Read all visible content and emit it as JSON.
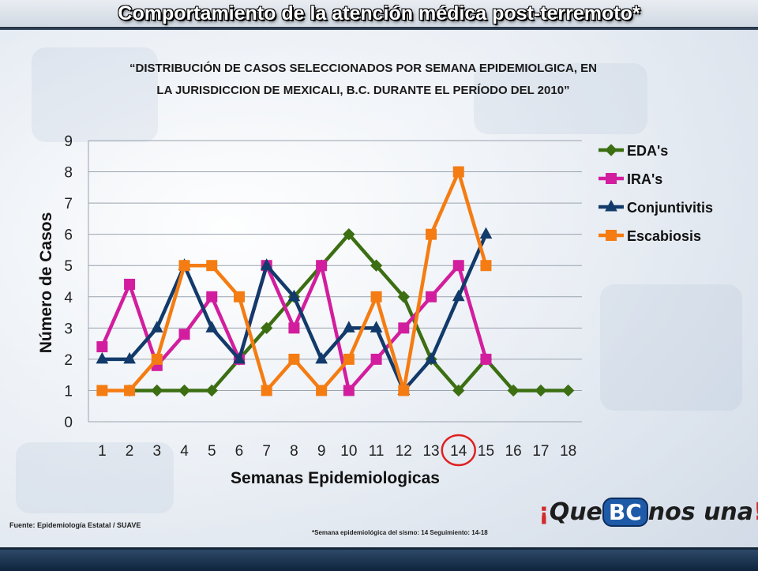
{
  "header": {
    "title": "Comportamiento de la atención médica post-terremoto*",
    "subtitle_line1": "“DISTRIBUCIÓN DE CASOS SELECCIONADOS POR SEMANA EPIDEMIOLGICA, EN",
    "subtitle_line2": "LA JURISDICCION DE MEXICALI, B.C. DURANTE EL PERÍODO DEL 2010”"
  },
  "footer": {
    "source": "Fuente: Epidemiología Estatal / SUAVE",
    "note": "*Semana epidemiológica del sismo: 14    Seguimiento: 14-18",
    "logo_text": "¡Que BC nos una!"
  },
  "colors": {
    "eda": "#3c6e12",
    "ira": "#d21e9e",
    "conjuntivitis": "#123a6a",
    "escabiosis": "#f47c12",
    "highlight": "#e02020"
  },
  "chart_data": {
    "type": "line",
    "xlabel": "Semanas Epidemiologicas",
    "ylabel": "Número de Casos",
    "ylim": [
      0,
      9
    ],
    "yticks": [
      0,
      1,
      2,
      3,
      4,
      5,
      6,
      7,
      8,
      9
    ],
    "grid": true,
    "legend_position": "right",
    "highlighted_category": "14",
    "categories": [
      "1",
      "2",
      "3",
      "4",
      "5",
      "6",
      "7",
      "8",
      "9",
      "10",
      "11",
      "12",
      "13",
      "14",
      "15",
      "16",
      "17",
      "18"
    ],
    "series": [
      {
        "name": "EDA's",
        "marker": "diamond",
        "color_key": "eda",
        "values": [
          null,
          1,
          1,
          1,
          1,
          2,
          3,
          4,
          5,
          6,
          5,
          4,
          2,
          1,
          2,
          1,
          1,
          1
        ]
      },
      {
        "name": "IRA's",
        "marker": "square",
        "color_key": "ira",
        "values": [
          2.4,
          4.4,
          1.8,
          2.8,
          4,
          2,
          5,
          3,
          5,
          1,
          2,
          3,
          4,
          5,
          2,
          null,
          null,
          null
        ]
      },
      {
        "name": "Conjuntivitis",
        "marker": "triangle",
        "color_key": "conjuntivitis",
        "values": [
          2,
          2,
          3,
          5,
          3,
          2,
          5,
          4,
          2,
          3,
          3,
          1,
          2,
          4,
          6,
          null,
          null,
          null
        ]
      },
      {
        "name": "Escabiosis",
        "marker": "square",
        "color_key": "escabiosis",
        "values": [
          1,
          1,
          2,
          5,
          5,
          4,
          1,
          2,
          1,
          2,
          4,
          1,
          6,
          8,
          5,
          null,
          null,
          null
        ]
      }
    ]
  }
}
